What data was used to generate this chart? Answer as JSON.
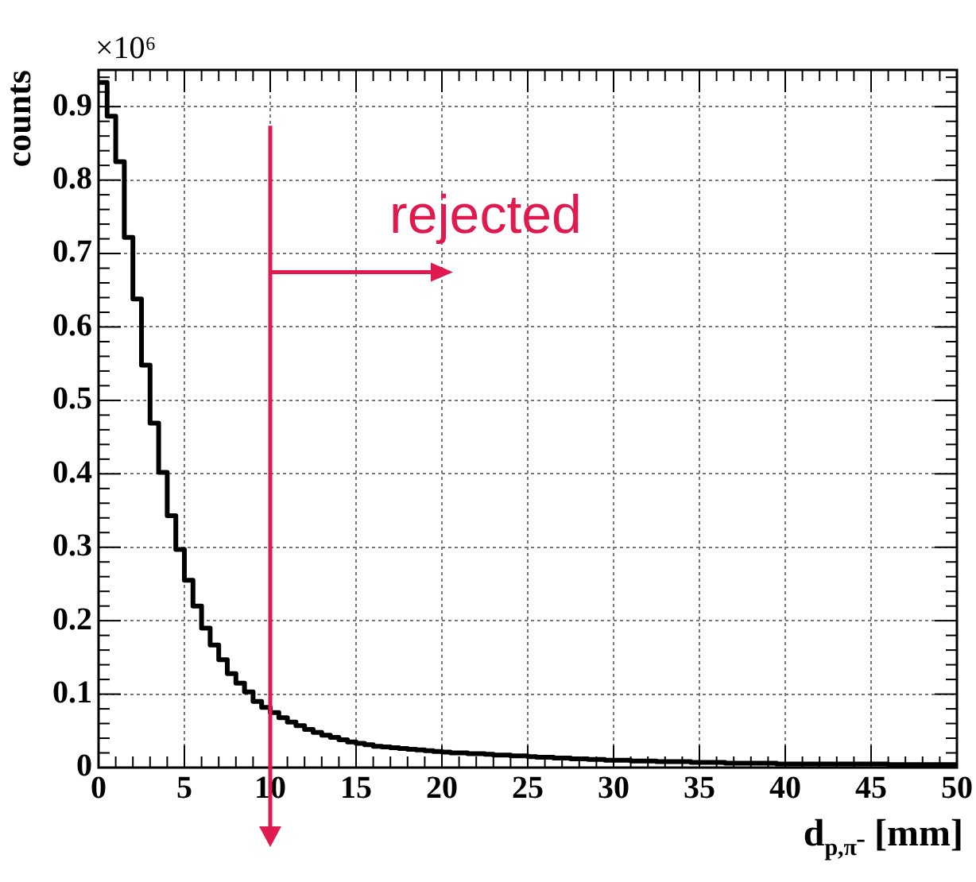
{
  "chart_data": {
    "type": "histogram",
    "xlabel": "d$_{p,π⁻}$ [mm]",
    "ylabel": "counts",
    "bins": [
      0,
      0.5,
      1,
      1.5,
      2,
      2.5,
      3,
      3.5,
      4,
      4.5,
      5,
      5.5,
      6,
      6.5,
      7,
      7.5,
      8,
      8.5,
      9,
      9.5,
      10,
      10.5,
      11,
      11.5,
      12,
      12.5,
      13,
      13.5,
      14,
      14.5,
      15,
      15.5,
      16,
      16.5,
      17,
      17.5,
      18,
      18.5,
      19,
      19.5,
      20,
      20.5,
      21,
      21.5,
      22,
      22.5,
      23,
      23.5,
      24,
      24.5,
      25,
      25.5,
      26,
      26.5,
      27,
      27.5,
      28,
      28.5,
      29,
      29.5,
      30,
      30.5,
      31,
      31.5,
      32,
      32.5,
      33,
      33.5,
      34,
      34.5,
      35,
      35.5,
      36,
      36.5,
      37,
      37.5,
      38,
      38.5,
      39,
      39.5,
      40,
      40.5,
      41,
      41.5,
      42,
      42.5,
      43,
      43.5,
      44,
      44.5,
      45,
      45.5,
      46,
      46.5,
      47,
      47.5,
      48,
      48.5,
      49,
      49.5,
      50
    ],
    "values": [
      0.933,
      0.887,
      0.825,
      0.722,
      0.638,
      0.548,
      0.469,
      0.402,
      0.343,
      0.297,
      0.255,
      0.22,
      0.19,
      0.167,
      0.147,
      0.128,
      0.115,
      0.103,
      0.09,
      0.082,
      0.075,
      0.068,
      0.062,
      0.057,
      0.052,
      0.048,
      0.044,
      0.041,
      0.038,
      0.035,
      0.033,
      0.031,
      0.029,
      0.028,
      0.027,
      0.026,
      0.025,
      0.024,
      0.023,
      0.022,
      0.021,
      0.02,
      0.02,
      0.019,
      0.019,
      0.018,
      0.017,
      0.017,
      0.016,
      0.016,
      0.015,
      0.014,
      0.014,
      0.013,
      0.013,
      0.012,
      0.012,
      0.011,
      0.011,
      0.01,
      0.01,
      0.01,
      0.009,
      0.009,
      0.009,
      0.008,
      0.008,
      0.008,
      0.008,
      0.007,
      0.007,
      0.007,
      0.007,
      0.006,
      0.006,
      0.006,
      0.006,
      0.006,
      0.006,
      0.005,
      0.005,
      0.005,
      0.005,
      0.005,
      0.005,
      0.005,
      0.005,
      0.005,
      0.005,
      0.005,
      0.005,
      0.005,
      0.004,
      0.004,
      0.004,
      0.004,
      0.004,
      0.004,
      0.004,
      0.004
    ],
    "color": "#000000",
    "xlim": [
      0,
      50
    ],
    "xticks": [
      0,
      5,
      10,
      15,
      20,
      25,
      30,
      35,
      40,
      45,
      50
    ],
    "ylim": [
      0,
      0.95
    ],
    "yticks": [
      0,
      0.1,
      0.2,
      0.3,
      0.4,
      0.5,
      0.6,
      0.7,
      0.8,
      0.9
    ],
    "grid": true,
    "legend": false,
    "ref_lines": [
      {
        "axis": "x",
        "value": 10,
        "color": "#e0194f"
      }
    ],
    "annotations": [
      "×10⁶",
      "rejected"
    ]
  }
}
